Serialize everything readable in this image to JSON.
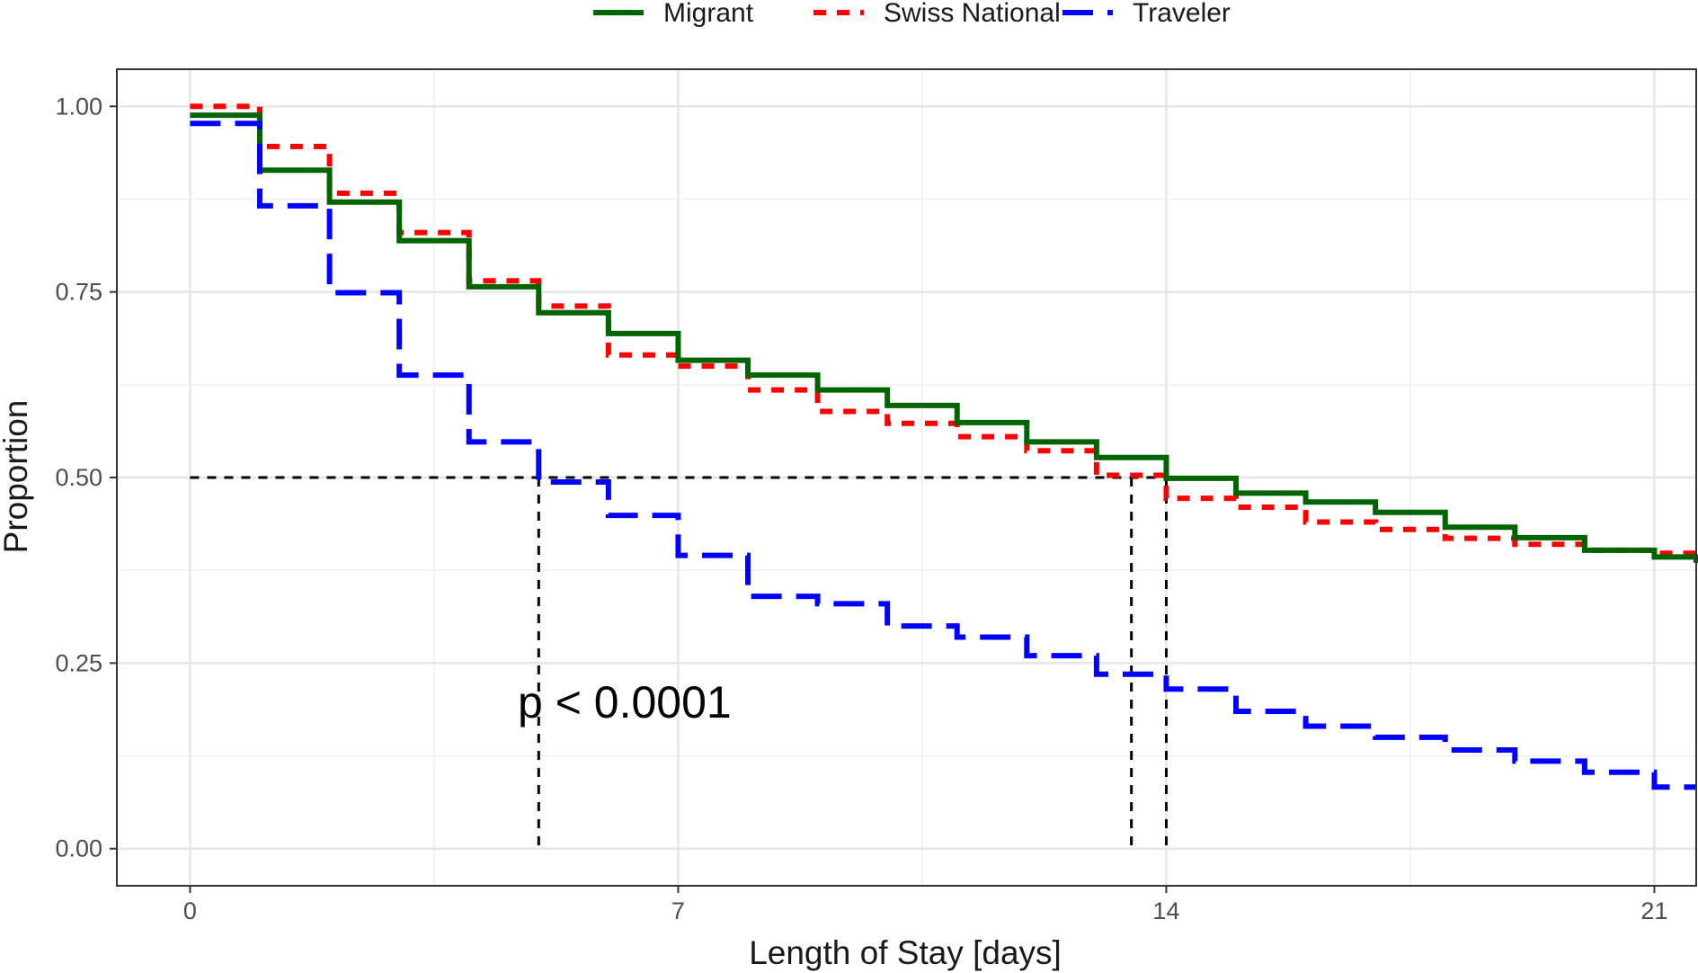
{
  "chart_data": {
    "type": "line",
    "step": true,
    "xlabel": "Length of Stay [days]",
    "ylabel": "Proportion",
    "xlim": [
      -1.05,
      21.6
    ],
    "ylim": [
      -0.05,
      1.05
    ],
    "x_ticks": [
      0,
      7,
      14,
      21
    ],
    "x_tick_labels": [
      "0",
      "7",
      "14",
      "21"
    ],
    "y_ticks": [
      0,
      0.25,
      0.5,
      0.75,
      1
    ],
    "y_tick_labels": [
      "0.00",
      "0.25",
      "0.50",
      "0.75",
      "1.00"
    ],
    "grid": true,
    "legend": {
      "position": "top",
      "entries": [
        "Migrant",
        "Swiss National",
        "Traveler"
      ]
    },
    "x": [
      0,
      1,
      2,
      3,
      4,
      5,
      6,
      7,
      8,
      9,
      10,
      11,
      12,
      13,
      14,
      15,
      16,
      17,
      18,
      19,
      20,
      21,
      21.6
    ],
    "series": [
      {
        "name": "Migrant",
        "color": "#006400",
        "dash": "solid",
        "values": [
          0.988,
          0.914,
          0.871,
          0.819,
          0.757,
          0.722,
          0.694,
          0.658,
          0.638,
          0.618,
          0.597,
          0.574,
          0.548,
          0.527,
          0.499,
          0.479,
          0.467,
          0.453,
          0.433,
          0.419,
          0.402,
          0.393,
          0.385
        ]
      },
      {
        "name": "Swiss National",
        "color": "#ff0000",
        "dash": "dashed",
        "values": [
          1.0,
          0.946,
          0.883,
          0.83,
          0.765,
          0.731,
          0.665,
          0.65,
          0.618,
          0.589,
          0.573,
          0.555,
          0.536,
          0.503,
          0.472,
          0.46,
          0.44,
          0.43,
          0.418,
          0.41,
          0.402,
          0.398,
          0.396
        ]
      },
      {
        "name": "Traveler",
        "color": "#0000ff",
        "dash": "longdash",
        "values": [
          0.977,
          0.866,
          0.749,
          0.638,
          0.548,
          0.494,
          0.449,
          0.395,
          0.34,
          0.33,
          0.3,
          0.285,
          0.26,
          0.235,
          0.215,
          0.185,
          0.165,
          0.15,
          0.133,
          0.118,
          0.103,
          0.083,
          0.083
        ]
      }
    ],
    "median_reference": {
      "y": 0.5,
      "x_values": [
        5,
        13.5,
        14
      ]
    },
    "annotation": "p < 0.0001"
  }
}
